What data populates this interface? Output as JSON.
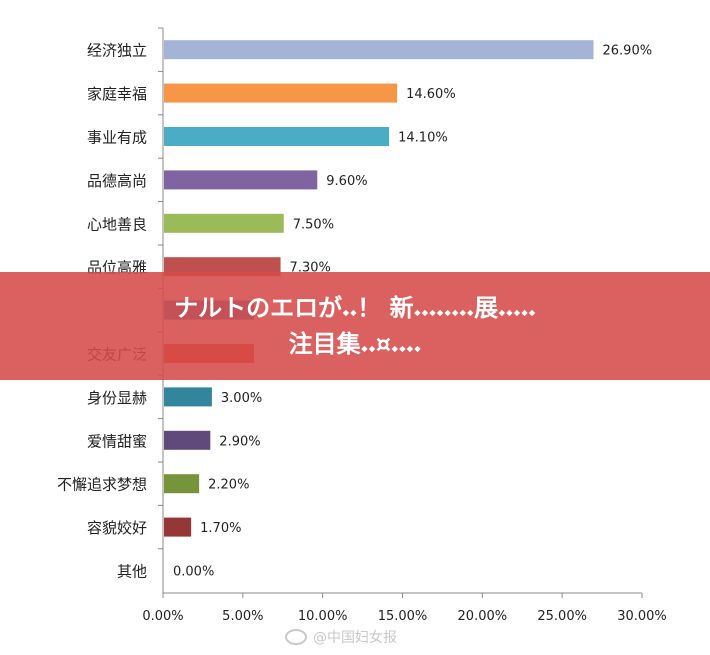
{
  "chart_data": {
    "type": "bar",
    "orientation": "horizontal",
    "categories": [
      "经济独立",
      "家庭幸福",
      "事业有成",
      "品德高尚",
      "心地善良",
      "品位高雅",
      "",
      "交友广泛",
      "身份显赫",
      "爱情甜蜜",
      "不懈追求梦想",
      "容貌姣好",
      "其他"
    ],
    "values": [
      26.9,
      14.6,
      14.1,
      9.6,
      7.5,
      7.3,
      null,
      null,
      3.0,
      2.9,
      2.2,
      1.7,
      0.0
    ],
    "value_labels": [
      "26.90%",
      "14.60%",
      "14.10%",
      "9.60%",
      "7.50%",
      "7.30%",
      "",
      "",
      "3.00%",
      "2.90%",
      "2.20%",
      "1.70%",
      "0.00%"
    ],
    "colors": [
      "#a5b4d6",
      "#f79646",
      "#4bacc6",
      "#8064a2",
      "#9bbb59",
      "#c0504d",
      "#4f81bd",
      "#d84b2f",
      "#31859c",
      "#604a7b",
      "#77933c",
      "#953735",
      "#4f81bd"
    ],
    "xlim": [
      0,
      30
    ],
    "x_ticks": [
      "0.00%",
      "5.00%",
      "10.00%",
      "15.00%",
      "20.00%",
      "25.00%",
      "30.00%"
    ],
    "x_tick_values": [
      0,
      5,
      10,
      15,
      20,
      25,
      30
    ],
    "grid": false
  },
  "banner": {
    "line1": "ナルトのエロが𝆺𝆺！ 新𝆺𝆺𝆺𝆺𝆺𝆺𝆺𝆺展𝆺𝆺𝆺𝆺𝆺",
    "line2": "注目集𝆺𝆺¤𝆺𝆺𝆺𝆺"
  },
  "watermark": {
    "text": "@中国妇女报",
    "icon": "weibo-icon"
  }
}
